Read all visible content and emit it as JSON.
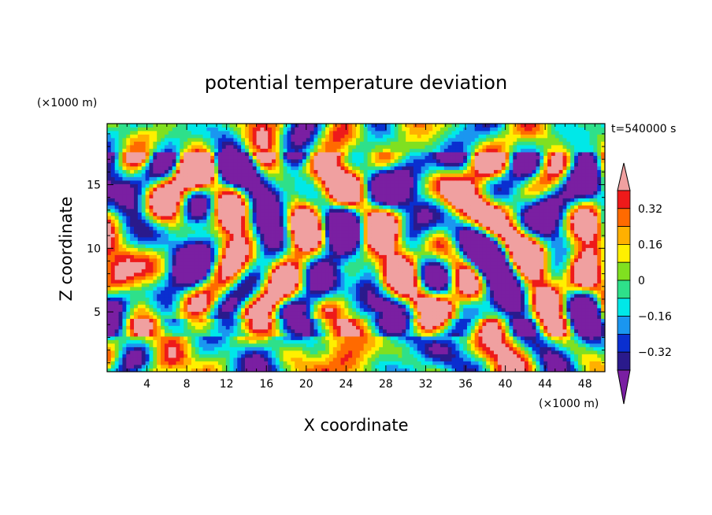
{
  "chart_data": {
    "type": "heatmap",
    "title": "potential temperature deviation",
    "time_label": "t=540000 s",
    "xlabel": "X coordinate",
    "ylabel": "Z coordinate",
    "x_unit": "(×1000 m)",
    "y_unit": "(×1000 m)",
    "xlim": [
      0,
      50
    ],
    "ylim": [
      0.3,
      19.8
    ],
    "x_ticks": [
      "4",
      "8",
      "12",
      "16",
      "20",
      "24",
      "28",
      "32",
      "36",
      "40",
      "44",
      "48"
    ],
    "y_ticks": [
      "5",
      "10",
      "15"
    ],
    "colorbar": {
      "tick_labels": [
        "0.32",
        "0.16",
        "0",
        "−0.16",
        "−0.32"
      ],
      "levels": [
        -0.4,
        -0.32,
        -0.24,
        -0.16,
        -0.08,
        0,
        0.08,
        0.16,
        0.24,
        0.32,
        0.4
      ],
      "colors": [
        "#7a1fa2",
        "#2a1a8c",
        "#0a2fd0",
        "#1a96f0",
        "#00e8e8",
        "#2ee08a",
        "#80e020",
        "#fff000",
        "#ffb000",
        "#ff6a00",
        "#ee1a1a",
        "#f0a0a0"
      ]
    }
  }
}
